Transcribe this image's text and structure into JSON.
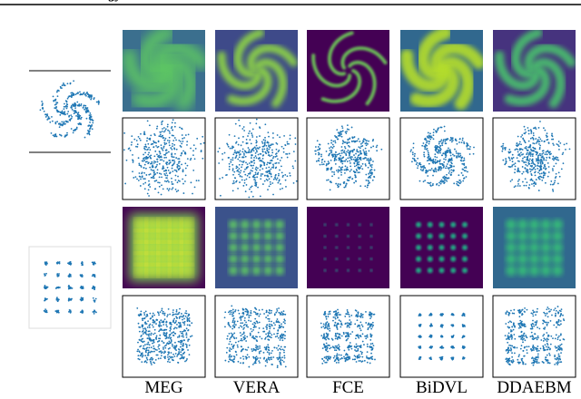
{
  "header": {
    "fragment": "ogy"
  },
  "columns": [
    "MEG",
    "VERA",
    "FCE",
    "BiDVL",
    "DDAEBM"
  ]
}
